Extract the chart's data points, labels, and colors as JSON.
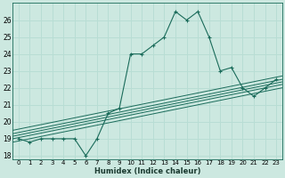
{
  "xlabel": "Humidex (Indice chaleur)",
  "bg_color": "#cce8e0",
  "grid_color": "#b8ddd4",
  "line_color": "#1a6b5a",
  "xlim": [
    -0.5,
    23.5
  ],
  "ylim": [
    17.8,
    27.0
  ],
  "yticks": [
    18,
    19,
    20,
    21,
    22,
    23,
    24,
    25,
    26
  ],
  "xticks": [
    0,
    1,
    2,
    3,
    4,
    5,
    6,
    7,
    8,
    9,
    10,
    11,
    12,
    13,
    14,
    15,
    16,
    17,
    18,
    19,
    20,
    21,
    22,
    23
  ],
  "main_line": [
    19,
    18.8,
    19,
    19,
    19,
    19,
    18,
    19,
    20.5,
    20.8,
    24.0,
    24.0,
    24.5,
    25.0,
    26.5,
    26.0,
    26.5,
    25.0,
    23.0,
    23.2,
    22.0,
    21.5,
    22.0,
    22.5
  ],
  "diag_lines": [
    {
      "start": 18.8,
      "end": 22.0
    },
    {
      "start": 19.0,
      "end": 22.2
    },
    {
      "start": 19.15,
      "end": 22.35
    },
    {
      "start": 19.3,
      "end": 22.5
    },
    {
      "start": 19.5,
      "end": 22.7
    }
  ]
}
